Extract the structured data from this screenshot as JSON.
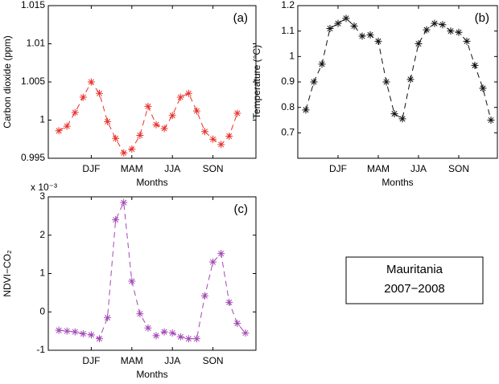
{
  "chart_data": [
    {
      "type": "line",
      "panel_label": "(a)",
      "xlabel": "Months",
      "ylabel": "Carbon dioxide (ppm)",
      "x": [
        1,
        2,
        3,
        4,
        5,
        6,
        7,
        8,
        9,
        10,
        11,
        12,
        13,
        14,
        15,
        16,
        17,
        18,
        19,
        20,
        21,
        22,
        23
      ],
      "series": [
        {
          "color": "#e8312a",
          "values": [
            0.9986,
            0.9992,
            1.001,
            1.003,
            1.005,
            1.0035,
            0.9998,
            0.9976,
            0.9957,
            0.9962,
            0.998,
            1.0018,
            0.9994,
            0.9989,
            1.0006,
            1.003,
            1.0035,
            1.0012,
            0.9985,
            0.9975,
            0.9968,
            0.9979,
            1.0009
          ]
        }
      ],
      "xlim": [
        -0.3,
        25.3
      ],
      "ylim": [
        0.995,
        1.015
      ],
      "xticks": [
        {
          "value": 5,
          "label": "DJF"
        },
        {
          "value": 10,
          "label": "MAM"
        },
        {
          "value": 15,
          "label": "JJA"
        },
        {
          "value": 20,
          "label": "SON"
        }
      ],
      "yticks": [
        0.995,
        1,
        1.005,
        1.01,
        1.015
      ]
    },
    {
      "type": "line",
      "panel_label": "(b)",
      "xlabel": "Months",
      "ylabel": "Temperature (°C)",
      "x": [
        1,
        2,
        3,
        4,
        5,
        6,
        7,
        8,
        9,
        10,
        11,
        12,
        13,
        14,
        15,
        16,
        17,
        18,
        19,
        20,
        21,
        22,
        23,
        24
      ],
      "series": [
        {
          "color": "#111111",
          "values": [
            0.79,
            0.9,
            0.97,
            1.11,
            1.13,
            1.15,
            1.12,
            1.08,
            1.085,
            1.06,
            0.9,
            0.775,
            0.755,
            0.91,
            1.05,
            1.105,
            1.13,
            1.125,
            1.1,
            1.095,
            1.06,
            0.965,
            0.875,
            0.75
          ]
        }
      ],
      "xlim": [
        0,
        24.8
      ],
      "ylim": [
        0.6,
        1.2
      ],
      "xticks": [
        {
          "value": 5,
          "label": "DJF"
        },
        {
          "value": 10,
          "label": "MAM"
        },
        {
          "value": 15,
          "label": "JJA"
        },
        {
          "value": 20,
          "label": "SON"
        }
      ],
      "yticks": [
        0.7,
        0.8,
        0.9,
        1,
        1.1,
        1.2
      ]
    },
    {
      "type": "line",
      "panel_label": "(c)",
      "xlabel": "Months",
      "ylabel": "NDVI−CO₂",
      "y_multiplier": "x 10⁻³",
      "x": [
        1,
        2,
        3,
        4,
        5,
        6,
        7,
        8,
        9,
        10,
        11,
        12,
        13,
        14,
        15,
        16,
        17,
        18,
        19,
        20,
        21,
        22,
        23,
        24
      ],
      "series": [
        {
          "color": "#a347b5",
          "values": [
            -0.48,
            -0.5,
            -0.52,
            -0.57,
            -0.6,
            -0.7,
            -0.15,
            2.4,
            2.85,
            0.8,
            -0.05,
            -0.42,
            -0.62,
            -0.52,
            -0.55,
            -0.65,
            -0.7,
            -0.7,
            0.42,
            1.3,
            1.52,
            0.25,
            -0.3,
            -0.55
          ]
        }
      ],
      "xlim": [
        -0.3,
        25.3
      ],
      "ylim": [
        -1,
        3
      ],
      "xticks": [
        {
          "value": 5,
          "label": "DJF"
        },
        {
          "value": 10,
          "label": "MAM"
        },
        {
          "value": 15,
          "label": "JJA"
        },
        {
          "value": 20,
          "label": "SON"
        }
      ],
      "yticks": [
        -1,
        0,
        1,
        2,
        3
      ]
    }
  ],
  "text_box": {
    "lines": [
      "Mauritania",
      "2007−2008"
    ]
  }
}
